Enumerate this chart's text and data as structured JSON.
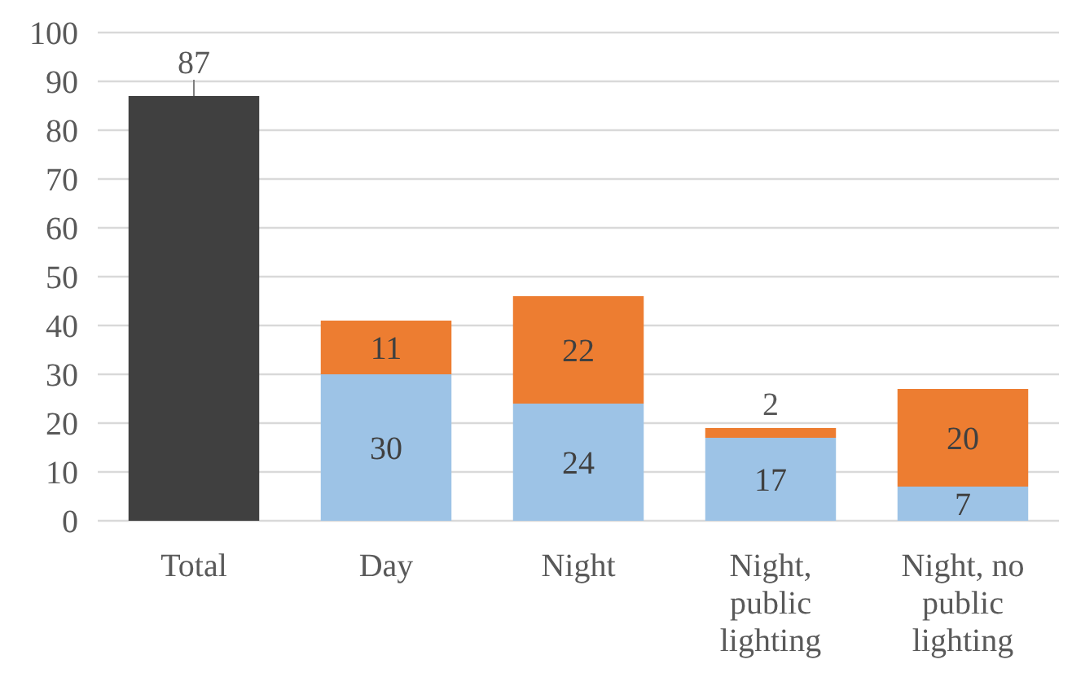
{
  "chart_data": {
    "type": "bar",
    "stacked": true,
    "categories": [
      "Total",
      "Day",
      "Night",
      "Night, public lighting",
      "Night, no public lighting"
    ],
    "series": [
      {
        "color": "#404040",
        "values": [
          87,
          null,
          null,
          null,
          null
        ]
      },
      {
        "color": "#9dc3e6",
        "values": [
          null,
          30,
          24,
          17,
          7
        ]
      },
      {
        "color": "#ed7d31",
        "values": [
          null,
          11,
          22,
          2,
          20
        ]
      }
    ],
    "ylim": [
      0,
      100
    ],
    "yticks": [
      0,
      10,
      20,
      30,
      40,
      50,
      60,
      70,
      80,
      90,
      100
    ],
    "grid": "y",
    "data_labels": true
  }
}
